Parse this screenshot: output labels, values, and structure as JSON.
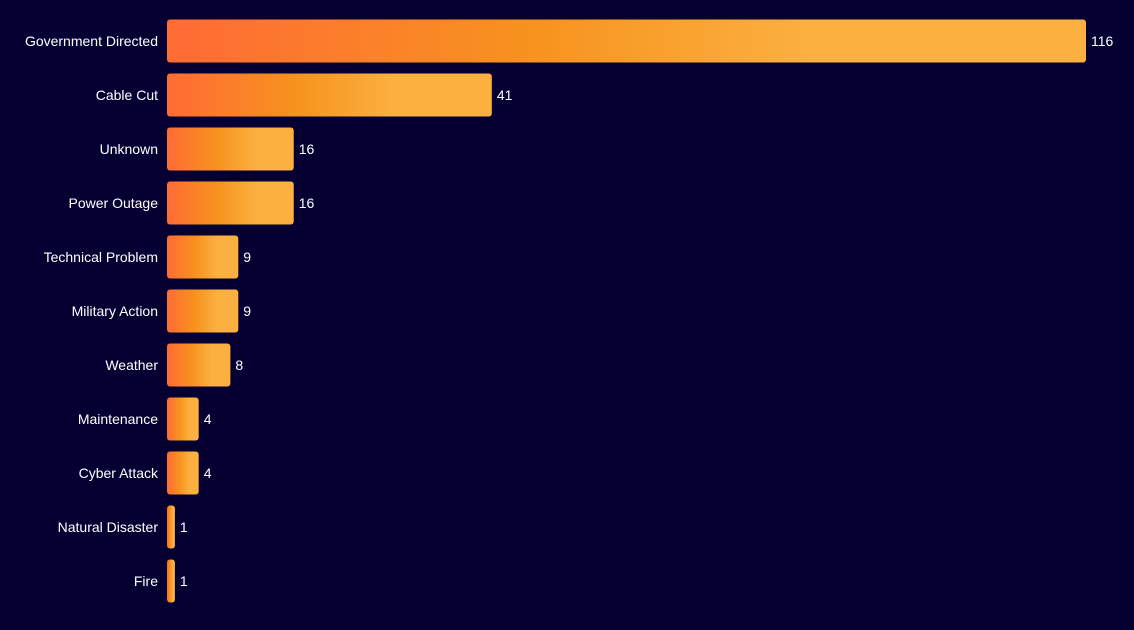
{
  "chart_data": {
    "type": "bar",
    "orientation": "horizontal",
    "title": "",
    "xlabel": "",
    "ylabel": "",
    "grid": false,
    "categories": [
      "Government Directed",
      "Cable Cut",
      "Unknown",
      "Power Outage",
      "Technical Problem",
      "Military Action",
      "Weather",
      "Maintenance",
      "Cyber Attack",
      "Natural Disaster",
      "Fire"
    ],
    "values": [
      116,
      41,
      16,
      16,
      9,
      9,
      8,
      4,
      4,
      1,
      1
    ],
    "xlim": [
      0,
      116
    ],
    "colors": {
      "background": "#060032",
      "bar_start": "#ff6b35",
      "bar_mid": "#f7931e",
      "bar_end": "#fbb040",
      "text": "#ffffff"
    }
  }
}
